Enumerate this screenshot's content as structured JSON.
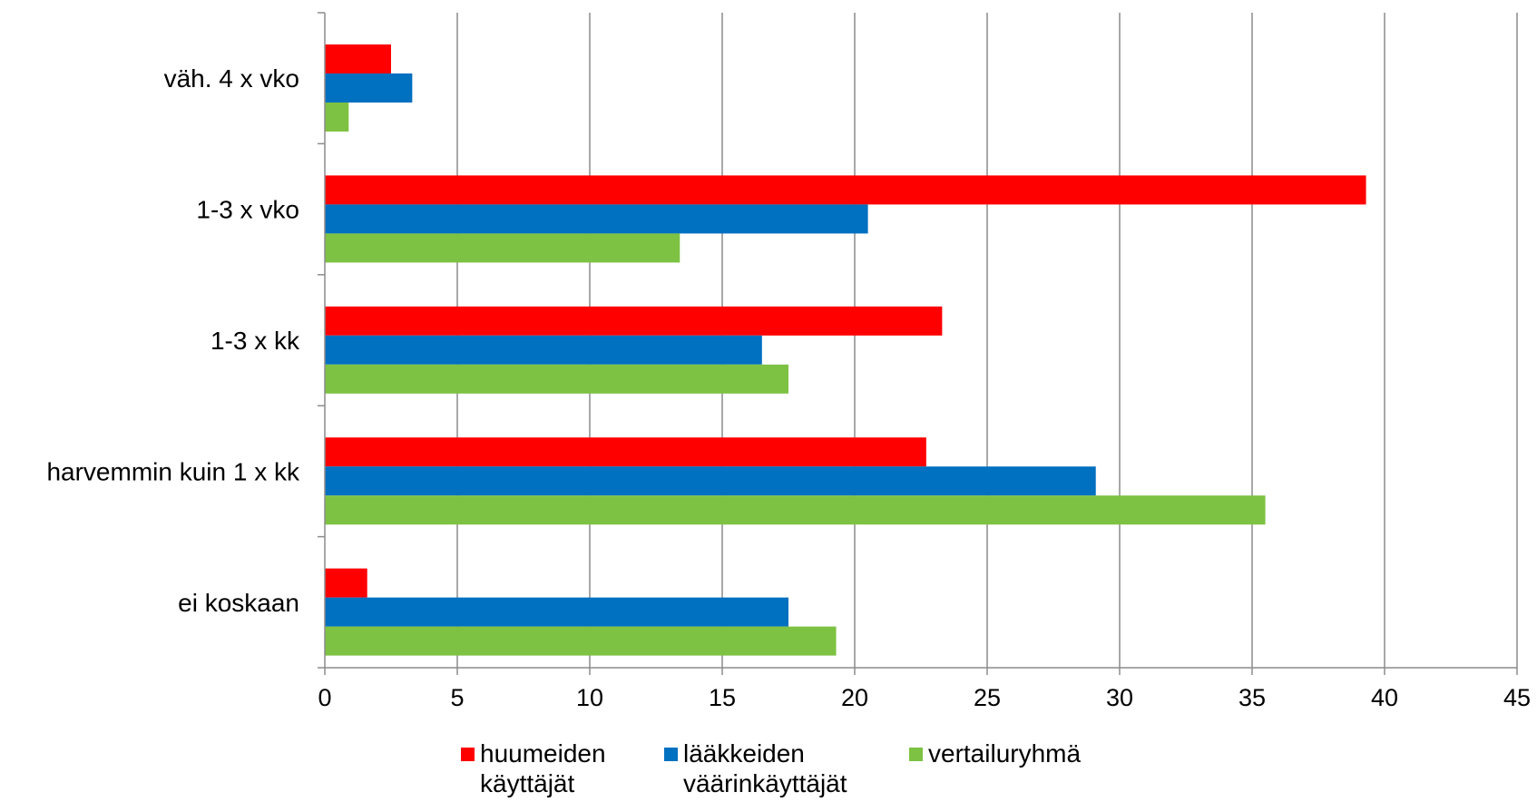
{
  "chart_data": {
    "type": "bar",
    "orientation": "horizontal",
    "categories": [
      "väh. 4 x vko",
      "1-3 x vko",
      "1-3 x kk",
      "harvemmin kuin 1 x kk",
      "ei koskaan"
    ],
    "series": [
      {
        "name": "huumeiden\nkäyttäjät",
        "color": "#ff0000",
        "values": [
          2.5,
          39.3,
          23.3,
          22.7,
          1.6
        ]
      },
      {
        "name": "lääkkeiden\nväärinkäyttäjät",
        "color": "#0070c0",
        "values": [
          3.3,
          20.5,
          16.5,
          29.1,
          17.5
        ]
      },
      {
        "name": "vertailuryhmä",
        "color": "#7dc242",
        "values": [
          0.9,
          13.4,
          17.5,
          35.5,
          19.3
        ]
      }
    ],
    "xlim": [
      0,
      45
    ],
    "xticks": [
      "0",
      "5",
      "10",
      "15",
      "20",
      "25",
      "30",
      "35",
      "40",
      "45"
    ],
    "grid": true,
    "legend_position": "bottom"
  }
}
